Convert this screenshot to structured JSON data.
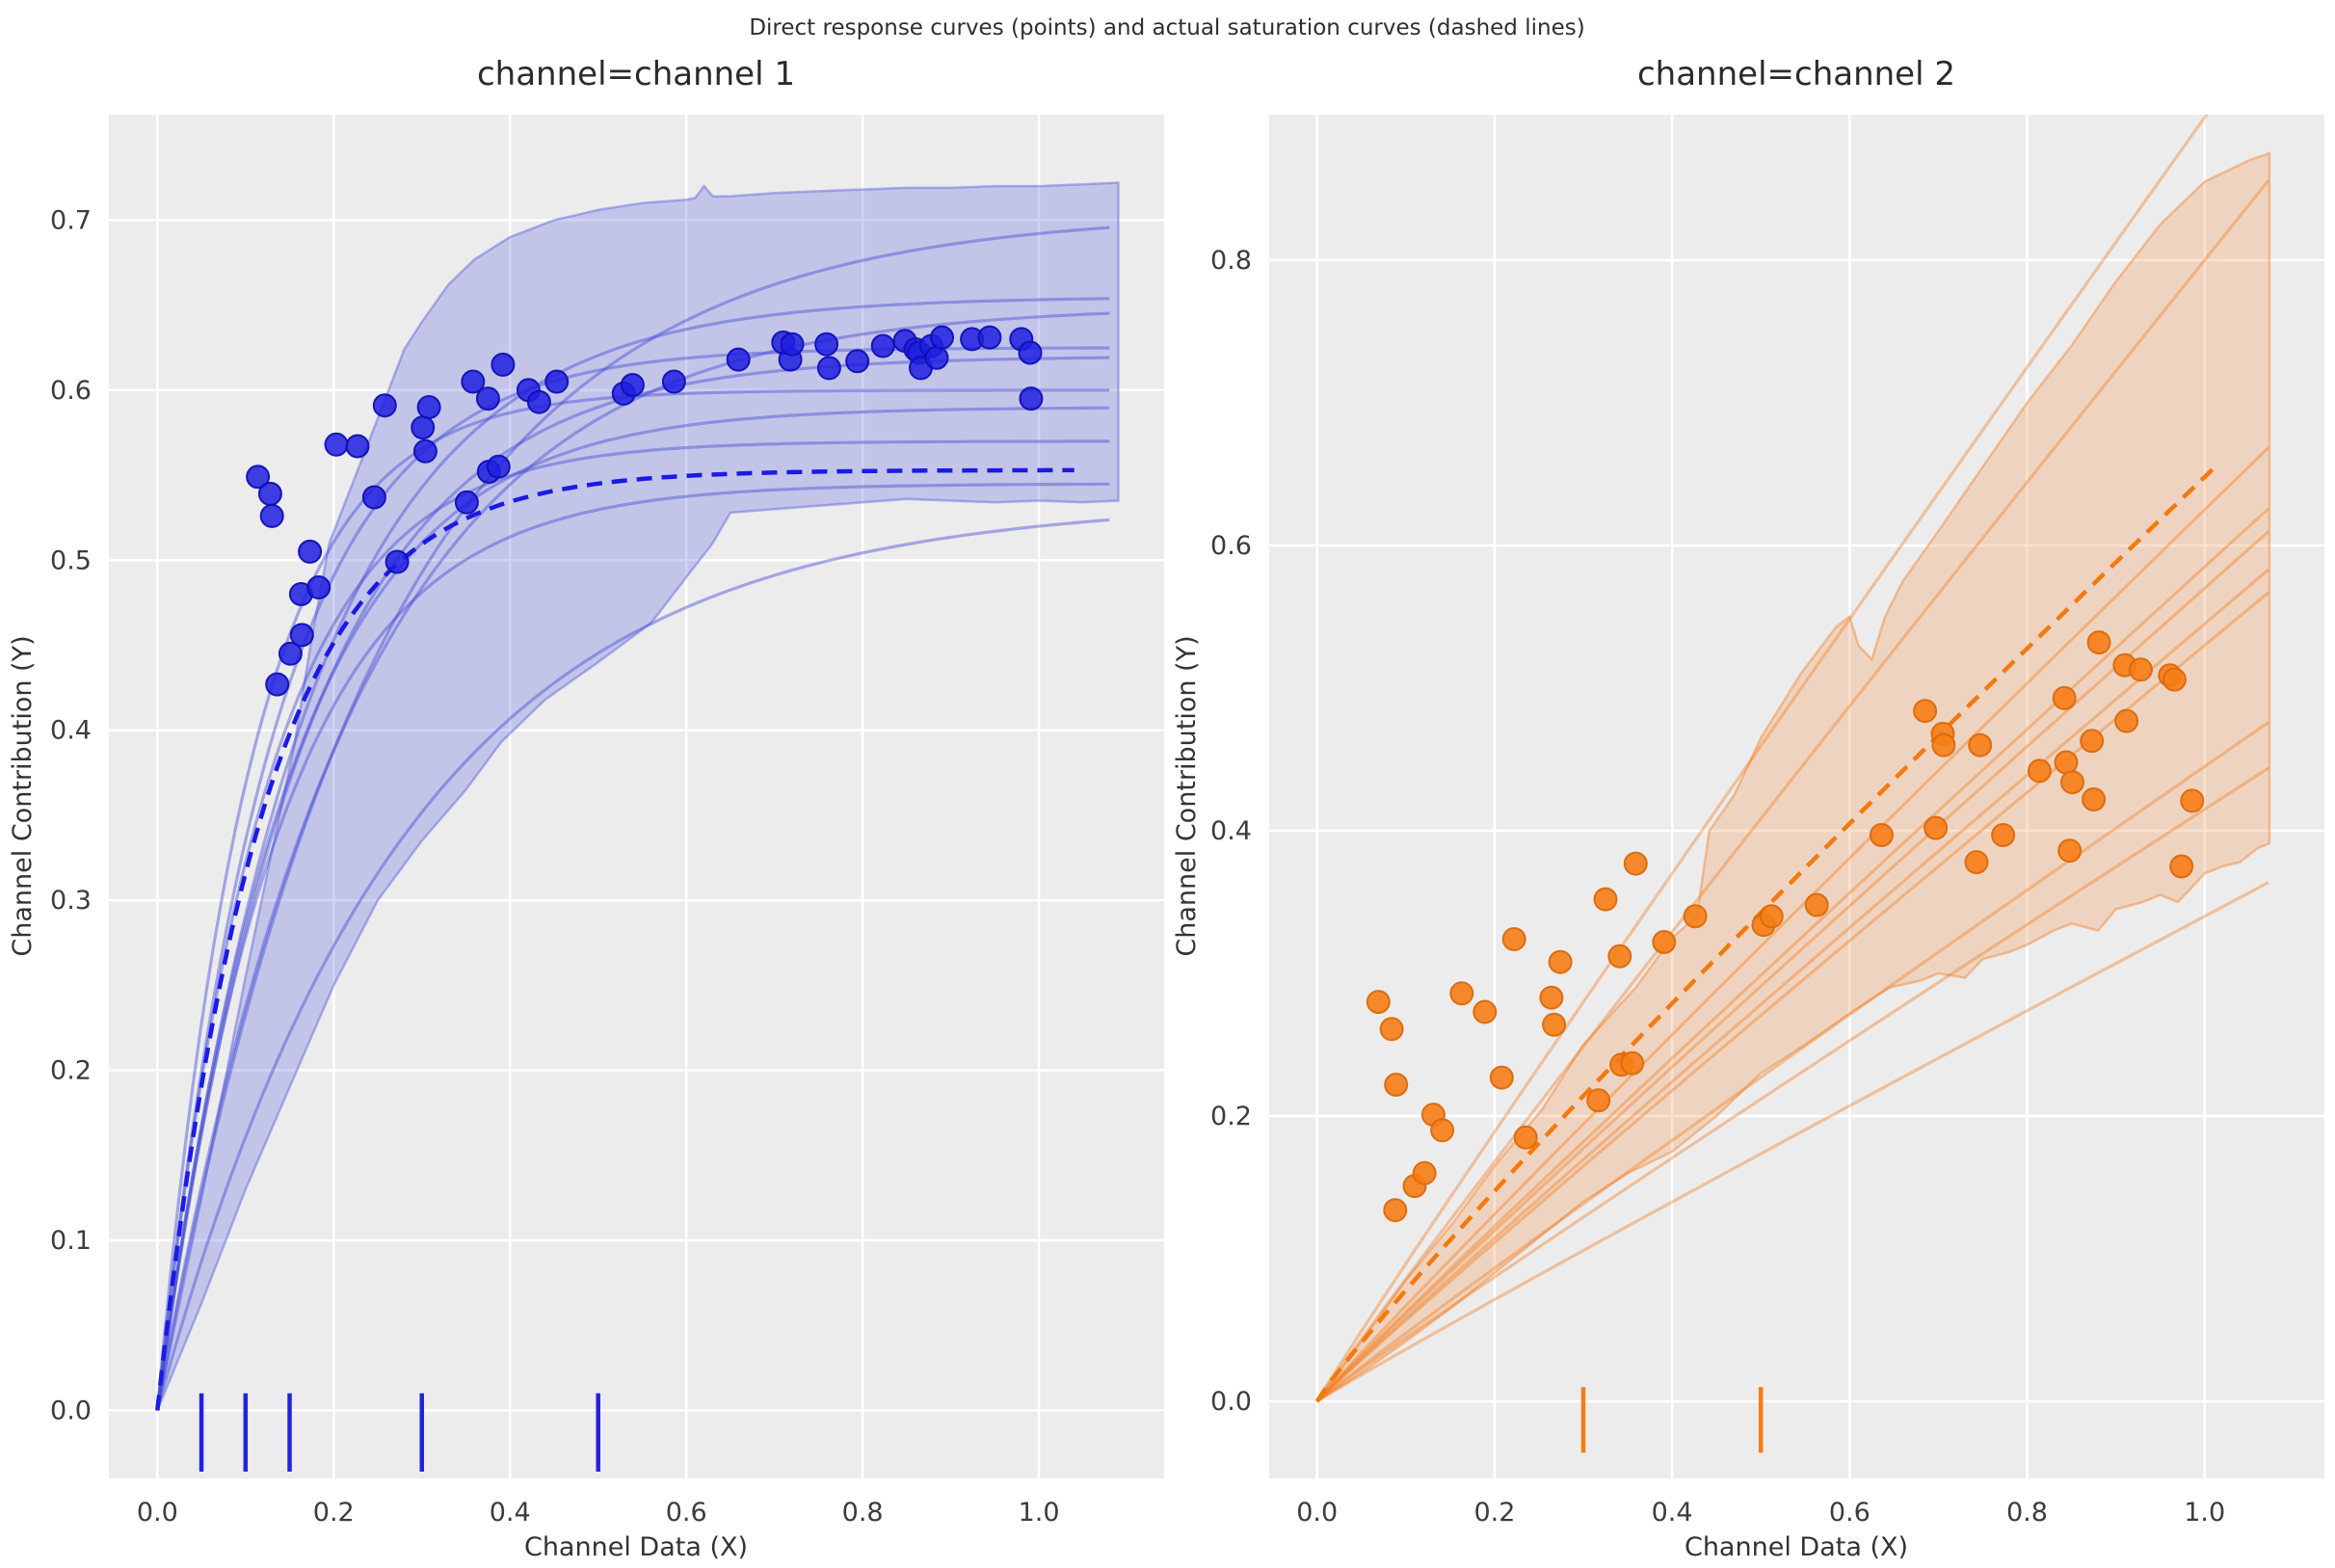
{
  "figure": {
    "suptitle": "Direct response curves (points) and actual saturation curves (dashed lines)",
    "background": "#ffffff",
    "axes_background": "#ececec",
    "grid_color": "#ffffff",
    "text_color": "#2f2f2f",
    "tick_color": "#3c3c3c"
  },
  "chart_data": [
    {
      "type": "scatter",
      "title": "channel=channel 1",
      "xlabel": "Channel Data (X)",
      "ylabel": "Channel Contribution (Y)",
      "x_ticks": [
        0.0,
        0.2,
        0.4,
        0.6,
        0.8,
        1.0
      ],
      "y_ticks": [
        0.0,
        0.1,
        0.2,
        0.3,
        0.4,
        0.5,
        0.6,
        0.7
      ],
      "xlim": [
        -0.055,
        1.142
      ],
      "ylim": [
        -0.04,
        0.762
      ],
      "grid": true,
      "legend": "none",
      "colors": {
        "scatter_fill": "rgba(30,30,224,0.85)",
        "scatter_edge": "rgba(16,16,180,0.95)",
        "dashed": "#1a1ae6",
        "curve": "rgba(70,78,215,0.45)",
        "band_fill": "rgba(88,96,222,0.28)",
        "band_edge": "rgba(88,96,222,0.45)",
        "rug": "#2222dd"
      },
      "scatter": [
        [
          0.114,
          0.549
        ],
        [
          0.128,
          0.539
        ],
        [
          0.13,
          0.526
        ],
        [
          0.136,
          0.427
        ],
        [
          0.151,
          0.445
        ],
        [
          0.164,
          0.456
        ],
        [
          0.163,
          0.48
        ],
        [
          0.183,
          0.484
        ],
        [
          0.173,
          0.505
        ],
        [
          0.203,
          0.568
        ],
        [
          0.227,
          0.567
        ],
        [
          0.258,
          0.591
        ],
        [
          0.246,
          0.537
        ],
        [
          0.272,
          0.499
        ],
        [
          0.301,
          0.578
        ],
        [
          0.304,
          0.564
        ],
        [
          0.308,
          0.59
        ],
        [
          0.351,
          0.534
        ],
        [
          0.358,
          0.605
        ],
        [
          0.375,
          0.595
        ],
        [
          0.376,
          0.552
        ],
        [
          0.387,
          0.555
        ],
        [
          0.392,
          0.615
        ],
        [
          0.421,
          0.6
        ],
        [
          0.433,
          0.593
        ],
        [
          0.453,
          0.605
        ],
        [
          0.529,
          0.598
        ],
        [
          0.539,
          0.603
        ],
        [
          0.586,
          0.605
        ],
        [
          0.659,
          0.618
        ],
        [
          0.71,
          0.628
        ],
        [
          0.718,
          0.618
        ],
        [
          0.72,
          0.627
        ],
        [
          0.759,
          0.627
        ],
        [
          0.762,
          0.613
        ],
        [
          0.794,
          0.617
        ],
        [
          0.823,
          0.626
        ],
        [
          0.848,
          0.629
        ],
        [
          0.86,
          0.624
        ],
        [
          0.864,
          0.622
        ],
        [
          0.866,
          0.613
        ],
        [
          0.878,
          0.626
        ],
        [
          0.884,
          0.619
        ],
        [
          0.89,
          0.631
        ],
        [
          0.924,
          0.63
        ],
        [
          0.944,
          0.631
        ],
        [
          0.98,
          0.63
        ],
        [
          0.99,
          0.622
        ],
        [
          0.991,
          0.595
        ]
      ],
      "dashed_curve": {
        "model": "saturation",
        "A": 0.553,
        "tau": 0.118,
        "x_end": 1.04
      },
      "sample_curves": [
        {
          "A": 0.705,
          "tau": 0.25
        },
        {
          "A": 0.655,
          "tau": 0.17
        },
        {
          "A": 0.65,
          "tau": 0.22
        },
        {
          "A": 0.625,
          "tau": 0.13
        },
        {
          "A": 0.62,
          "tau": 0.165
        },
        {
          "A": 0.6,
          "tau": 0.105
        },
        {
          "A": 0.59,
          "tau": 0.15
        },
        {
          "A": 0.57,
          "tau": 0.12
        },
        {
          "A": 0.545,
          "tau": 0.14
        },
        {
          "A": 0.535,
          "tau": 0.28
        }
      ],
      "curves_x_end": 1.08,
      "band_upper": [
        [
          0,
          0
        ],
        [
          0.05,
          0.125
        ],
        [
          0.1,
          0.255
        ],
        [
          0.156,
          0.393
        ],
        [
          0.175,
          0.454
        ],
        [
          0.195,
          0.51
        ],
        [
          0.24,
          0.57
        ],
        [
          0.28,
          0.624
        ],
        [
          0.3,
          0.64
        ],
        [
          0.33,
          0.662
        ],
        [
          0.36,
          0.677
        ],
        [
          0.4,
          0.69
        ],
        [
          0.45,
          0.7
        ],
        [
          0.5,
          0.706
        ],
        [
          0.55,
          0.71
        ],
        [
          0.6,
          0.712
        ],
        [
          0.61,
          0.713
        ],
        [
          0.62,
          0.72
        ],
        [
          0.63,
          0.714
        ],
        [
          0.65,
          0.714
        ],
        [
          0.7,
          0.716
        ],
        [
          0.75,
          0.717
        ],
        [
          0.8,
          0.718
        ],
        [
          0.85,
          0.719
        ],
        [
          0.9,
          0.719
        ],
        [
          0.95,
          0.72
        ],
        [
          1.0,
          0.72
        ],
        [
          1.05,
          0.721
        ],
        [
          1.09,
          0.722
        ]
      ],
      "band_lower": [
        [
          0,
          0
        ],
        [
          0.05,
          0.063
        ],
        [
          0.1,
          0.13
        ],
        [
          0.15,
          0.19
        ],
        [
          0.2,
          0.25
        ],
        [
          0.25,
          0.3
        ],
        [
          0.3,
          0.335
        ],
        [
          0.35,
          0.365
        ],
        [
          0.39,
          0.393
        ],
        [
          0.44,
          0.418
        ],
        [
          0.5,
          0.44
        ],
        [
          0.56,
          0.463
        ],
        [
          0.6,
          0.49
        ],
        [
          0.63,
          0.51
        ],
        [
          0.65,
          0.528
        ],
        [
          0.7,
          0.53
        ],
        [
          0.75,
          0.532
        ],
        [
          0.8,
          0.534
        ],
        [
          0.85,
          0.536
        ],
        [
          0.9,
          0.535
        ],
        [
          0.95,
          0.534
        ],
        [
          1.0,
          0.535
        ],
        [
          1.05,
          0.534
        ],
        [
          1.09,
          0.535
        ]
      ],
      "rug_x": [
        0.05,
        0.1,
        0.15,
        0.3,
        0.5
      ]
    },
    {
      "type": "scatter",
      "title": "channel=channel 2",
      "xlabel": "Channel Data (X)",
      "ylabel": "Channel Contribution (Y)",
      "x_ticks": [
        0.0,
        0.2,
        0.4,
        0.6,
        0.8,
        1.0
      ],
      "y_ticks": [
        0.0,
        0.2,
        0.4,
        0.6,
        0.8
      ],
      "xlim": [
        -0.054,
        1.135
      ],
      "ylim": [
        -0.054,
        0.902
      ],
      "grid": true,
      "legend": "none",
      "colors": {
        "scatter_fill": "rgba(246,125,22,0.9)",
        "scatter_edge": "rgba(217,106,13,0.95)",
        "dashed": "#f5790d",
        "curve": "rgba(243,126,32,0.40)",
        "band_fill": "rgba(244,140,60,0.25)",
        "band_edge": "rgba(244,140,60,0.5)",
        "rug": "#f57d11"
      },
      "scatter": [
        [
          0.069,
          0.28
        ],
        [
          0.084,
          0.261
        ],
        [
          0.089,
          0.222
        ],
        [
          0.088,
          0.134
        ],
        [
          0.11,
          0.151
        ],
        [
          0.121,
          0.16
        ],
        [
          0.131,
          0.201
        ],
        [
          0.141,
          0.19
        ],
        [
          0.163,
          0.286
        ],
        [
          0.189,
          0.273
        ],
        [
          0.208,
          0.227
        ],
        [
          0.222,
          0.324
        ],
        [
          0.235,
          0.185
        ],
        [
          0.264,
          0.283
        ],
        [
          0.267,
          0.264
        ],
        [
          0.274,
          0.308
        ],
        [
          0.317,
          0.211
        ],
        [
          0.325,
          0.352
        ],
        [
          0.341,
          0.312
        ],
        [
          0.343,
          0.236
        ],
        [
          0.355,
          0.237
        ],
        [
          0.359,
          0.377
        ],
        [
          0.391,
          0.322
        ],
        [
          0.426,
          0.34
        ],
        [
          0.503,
          0.334
        ],
        [
          0.512,
          0.34
        ],
        [
          0.563,
          0.348
        ],
        [
          0.636,
          0.397
        ],
        [
          0.685,
          0.484
        ],
        [
          0.705,
          0.468
        ],
        [
          0.706,
          0.46
        ],
        [
          0.697,
          0.402
        ],
        [
          0.743,
          0.378
        ],
        [
          0.747,
          0.46
        ],
        [
          0.773,
          0.397
        ],
        [
          0.814,
          0.442
        ],
        [
          0.842,
          0.493
        ],
        [
          0.844,
          0.448
        ],
        [
          0.851,
          0.434
        ],
        [
          0.848,
          0.386
        ],
        [
          0.873,
          0.463
        ],
        [
          0.875,
          0.422
        ],
        [
          0.881,
          0.532
        ],
        [
          0.91,
          0.516
        ],
        [
          0.928,
          0.513
        ],
        [
          0.961,
          0.509
        ],
        [
          0.966,
          0.506
        ],
        [
          0.912,
          0.477
        ],
        [
          0.974,
          0.375
        ],
        [
          0.986,
          0.421
        ]
      ],
      "dashed_curve": {
        "model": "power",
        "scale": 0.648,
        "power": 0.92,
        "x_end": 1.02
      },
      "sample_lines": [
        {
          "scale": 0.9,
          "power": 0.97
        },
        {
          "scale": 0.8,
          "power": 0.97
        },
        {
          "scale": 0.625,
          "power": 0.97
        },
        {
          "scale": 0.585,
          "power": 0.97
        },
        {
          "scale": 0.57,
          "power": 0.97
        },
        {
          "scale": 0.545,
          "power": 0.97
        },
        {
          "scale": 0.53,
          "power": 0.97
        },
        {
          "scale": 0.445,
          "power": 0.97
        },
        {
          "scale": 0.415,
          "power": 0.97
        },
        {
          "scale": 0.34,
          "power": 0.97
        }
      ],
      "curves_x_end": 1.073,
      "band_upper": [
        [
          0,
          0
        ],
        [
          0.05,
          0.042
        ],
        [
          0.1,
          0.085
        ],
        [
          0.153,
          0.125
        ],
        [
          0.2,
          0.165
        ],
        [
          0.254,
          0.205
        ],
        [
          0.3,
          0.25
        ],
        [
          0.359,
          0.29
        ],
        [
          0.4,
          0.325
        ],
        [
          0.428,
          0.34
        ],
        [
          0.442,
          0.4
        ],
        [
          0.47,
          0.425
        ],
        [
          0.5,
          0.465
        ],
        [
          0.545,
          0.51
        ],
        [
          0.585,
          0.543
        ],
        [
          0.6,
          0.55
        ],
        [
          0.61,
          0.53
        ],
        [
          0.625,
          0.52
        ],
        [
          0.64,
          0.55
        ],
        [
          0.66,
          0.575
        ],
        [
          0.7,
          0.61
        ],
        [
          0.75,
          0.655
        ],
        [
          0.8,
          0.7
        ],
        [
          0.85,
          0.74
        ],
        [
          0.9,
          0.785
        ],
        [
          0.95,
          0.825
        ],
        [
          1.0,
          0.855
        ],
        [
          1.05,
          0.87
        ],
        [
          1.073,
          0.875
        ]
      ],
      "band_lower": [
        [
          0,
          0
        ],
        [
          0.05,
          0.02
        ],
        [
          0.1,
          0.042
        ],
        [
          0.15,
          0.065
        ],
        [
          0.2,
          0.09
        ],
        [
          0.25,
          0.115
        ],
        [
          0.3,
          0.14
        ],
        [
          0.35,
          0.16
        ],
        [
          0.4,
          0.175
        ],
        [
          0.45,
          0.2
        ],
        [
          0.5,
          0.23
        ],
        [
          0.55,
          0.25
        ],
        [
          0.6,
          0.272
        ],
        [
          0.645,
          0.29
        ],
        [
          0.68,
          0.295
        ],
        [
          0.7,
          0.3
        ],
        [
          0.73,
          0.297
        ],
        [
          0.75,
          0.31
        ],
        [
          0.78,
          0.315
        ],
        [
          0.8,
          0.32
        ],
        [
          0.83,
          0.33
        ],
        [
          0.85,
          0.335
        ],
        [
          0.88,
          0.33
        ],
        [
          0.9,
          0.345
        ],
        [
          0.93,
          0.35
        ],
        [
          0.95,
          0.355
        ],
        [
          0.97,
          0.35
        ],
        [
          1.0,
          0.37
        ],
        [
          1.02,
          0.375
        ],
        [
          1.04,
          0.378
        ],
        [
          1.06,
          0.388
        ],
        [
          1.073,
          0.391
        ]
      ],
      "rug_x": [
        0.3,
        0.5
      ]
    }
  ]
}
